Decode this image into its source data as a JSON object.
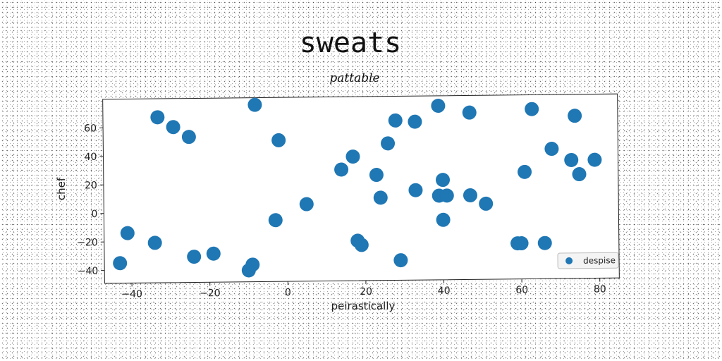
{
  "chart_data": {
    "type": "scatter",
    "title": "sweats",
    "subtitle": "pattable",
    "xlabel": "peirastically",
    "ylabel": "chef",
    "xlim": [
      -47,
      85
    ],
    "ylim": [
      -49,
      80
    ],
    "xticks": [
      -40,
      -20,
      0,
      20,
      40,
      60,
      80
    ],
    "yticks": [
      -40,
      -20,
      0,
      20,
      40,
      60
    ],
    "grid": false,
    "legend_position": "lower-right",
    "series": [
      {
        "name": "despise",
        "color": "#1f77b4",
        "points": [
          [
            -33,
            67
          ],
          [
            -29,
            60
          ],
          [
            -25,
            53
          ],
          [
            -8,
            75
          ],
          [
            -2,
            50
          ],
          [
            -41,
            -14
          ],
          [
            -34,
            -21
          ],
          [
            -24,
            -31
          ],
          [
            -19,
            -29
          ],
          [
            -43,
            -35
          ],
          [
            -10,
            -41
          ],
          [
            -9,
            -37
          ],
          [
            -3,
            -6
          ],
          [
            5,
            5
          ],
          [
            14,
            29
          ],
          [
            17,
            38
          ],
          [
            18,
            -21
          ],
          [
            19,
            -24
          ],
          [
            23,
            25
          ],
          [
            24,
            9
          ],
          [
            26,
            47
          ],
          [
            28,
            63
          ],
          [
            29,
            -35
          ],
          [
            33,
            62
          ],
          [
            33,
            14
          ],
          [
            39,
            73
          ],
          [
            39,
            10
          ],
          [
            40,
            21
          ],
          [
            41,
            10
          ],
          [
            40,
            -7
          ],
          [
            47,
            68
          ],
          [
            47,
            10
          ],
          [
            51,
            4
          ],
          [
            59,
            -24
          ],
          [
            60,
            -24
          ],
          [
            61,
            26
          ],
          [
            63,
            70
          ],
          [
            66,
            -24
          ],
          [
            68,
            42
          ],
          [
            73,
            34
          ],
          [
            74,
            65
          ],
          [
            75,
            24
          ],
          [
            79,
            34
          ]
        ]
      }
    ]
  }
}
